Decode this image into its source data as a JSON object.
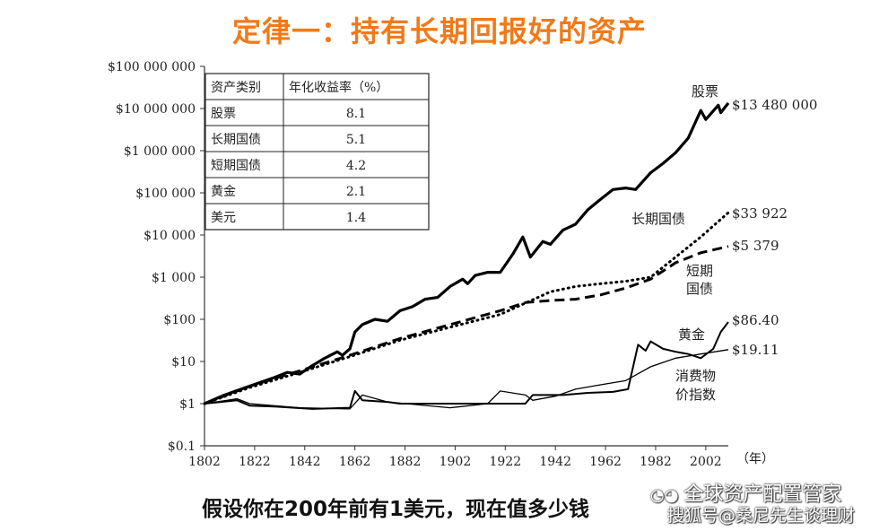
{
  "headline": "定律一：持有长期回报好的资产",
  "bottom_text": "假设你在200年前有1美元，现在值多少钱",
  "watermark": {
    "line1": "全球资产配置管家",
    "line2": "搜狐号@桑尼先生谈理财"
  },
  "chart_data": {
    "type": "line",
    "y_scale": "log",
    "ylim": [
      0.1,
      100000000
    ],
    "xlim": [
      1802,
      2011
    ],
    "y_ticks": [
      {
        "value": 100000000,
        "label": "$100 000 000"
      },
      {
        "value": 10000000,
        "label": "$10 000 000"
      },
      {
        "value": 1000000,
        "label": "$1 000 000"
      },
      {
        "value": 100000,
        "label": "$100 000"
      },
      {
        "value": 10000,
        "label": "$10 000"
      },
      {
        "value": 1000,
        "label": "$1 000"
      },
      {
        "value": 100,
        "label": "$100"
      },
      {
        "value": 10,
        "label": "$10"
      },
      {
        "value": 1,
        "label": "$1"
      },
      {
        "value": 0.1,
        "label": "$0.1"
      }
    ],
    "x_ticks": [
      1802,
      1822,
      1842,
      1862,
      1882,
      1902,
      1922,
      1942,
      1962,
      1982,
      2002
    ],
    "x_unit_label": "（年）",
    "table": {
      "headers": [
        "资产类别",
        "年化收益率（%）"
      ],
      "rows": [
        [
          "股票",
          "8.1"
        ],
        [
          "长期国债",
          "5.1"
        ],
        [
          "短期国债",
          "4.2"
        ],
        [
          "黄金",
          "2.1"
        ],
        [
          "美元",
          "1.4"
        ]
      ]
    },
    "series": [
      {
        "name": "股票",
        "end_label": "$13 480 000",
        "style": "thick",
        "points": [
          [
            1802,
            1
          ],
          [
            1810,
            1.6
          ],
          [
            1820,
            2.6
          ],
          [
            1830,
            4.2
          ],
          [
            1835,
            5.5
          ],
          [
            1840,
            5
          ],
          [
            1845,
            8
          ],
          [
            1850,
            12
          ],
          [
            1855,
            17
          ],
          [
            1857,
            14
          ],
          [
            1860,
            20
          ],
          [
            1862,
            50
          ],
          [
            1865,
            75
          ],
          [
            1870,
            100
          ],
          [
            1875,
            90
          ],
          [
            1880,
            160
          ],
          [
            1885,
            200
          ],
          [
            1890,
            300
          ],
          [
            1895,
            330
          ],
          [
            1900,
            600
          ],
          [
            1905,
            900
          ],
          [
            1907,
            700
          ],
          [
            1910,
            1100
          ],
          [
            1915,
            1300
          ],
          [
            1920,
            1300
          ],
          [
            1925,
            3500
          ],
          [
            1929,
            9000
          ],
          [
            1932,
            3000
          ],
          [
            1937,
            7000
          ],
          [
            1940,
            6000
          ],
          [
            1945,
            13000
          ],
          [
            1950,
            18000
          ],
          [
            1955,
            40000
          ],
          [
            1960,
            70000
          ],
          [
            1965,
            120000
          ],
          [
            1970,
            130000
          ],
          [
            1974,
            120000
          ],
          [
            1980,
            300000
          ],
          [
            1985,
            500000
          ],
          [
            1990,
            900000
          ],
          [
            1995,
            2000000
          ],
          [
            2000,
            9000000
          ],
          [
            2002,
            5500000
          ],
          [
            2007,
            12000000
          ],
          [
            2008,
            8000000
          ],
          [
            2011,
            13480000
          ]
        ]
      },
      {
        "name": "长期国债",
        "end_label": "$33 922",
        "style": "dotted",
        "points": [
          [
            1802,
            1
          ],
          [
            1820,
            2.4
          ],
          [
            1840,
            5.5
          ],
          [
            1860,
            13
          ],
          [
            1880,
            32
          ],
          [
            1900,
            65
          ],
          [
            1920,
            130
          ],
          [
            1940,
            450
          ],
          [
            1950,
            600
          ],
          [
            1960,
            700
          ],
          [
            1970,
            800
          ],
          [
            1980,
            1000
          ],
          [
            1990,
            3000
          ],
          [
            2000,
            9000
          ],
          [
            2011,
            33922
          ]
        ]
      },
      {
        "name": "短期国债",
        "end_label": "$5 379",
        "style": "dashed",
        "points": [
          [
            1802,
            1
          ],
          [
            1820,
            2.6
          ],
          [
            1840,
            6
          ],
          [
            1860,
            14
          ],
          [
            1880,
            35
          ],
          [
            1900,
            75
          ],
          [
            1920,
            160
          ],
          [
            1930,
            250
          ],
          [
            1940,
            280
          ],
          [
            1950,
            300
          ],
          [
            1960,
            380
          ],
          [
            1970,
            550
          ],
          [
            1980,
            900
          ],
          [
            1990,
            2200
          ],
          [
            2000,
            3800
          ],
          [
            2011,
            5379
          ]
        ]
      },
      {
        "name": "黄金",
        "end_label": "$86.40",
        "style": "medium",
        "points": [
          [
            1802,
            1
          ],
          [
            1815,
            1.2
          ],
          [
            1820,
            0.9
          ],
          [
            1830,
            0.85
          ],
          [
            1845,
            0.75
          ],
          [
            1860,
            0.8
          ],
          [
            1862,
            2
          ],
          [
            1865,
            1.2
          ],
          [
            1875,
            1.1
          ],
          [
            1880,
            1
          ],
          [
            1930,
            1
          ],
          [
            1933,
            1.6
          ],
          [
            1945,
            1.6
          ],
          [
            1955,
            1.8
          ],
          [
            1965,
            1.9
          ],
          [
            1971,
            2.2
          ],
          [
            1975,
            25
          ],
          [
            1978,
            18
          ],
          [
            1980,
            30
          ],
          [
            1985,
            20
          ],
          [
            1990,
            17
          ],
          [
            1995,
            15
          ],
          [
            2000,
            12
          ],
          [
            2005,
            20
          ],
          [
            2008,
            50
          ],
          [
            2011,
            86.4
          ]
        ]
      },
      {
        "name": "消费物价指数",
        "end_label": "$19.11",
        "style": "thin",
        "points": [
          [
            1802,
            1
          ],
          [
            1815,
            1.3
          ],
          [
            1820,
            1
          ],
          [
            1840,
            0.8
          ],
          [
            1860,
            0.75
          ],
          [
            1865,
            1.6
          ],
          [
            1875,
            1.1
          ],
          [
            1900,
            0.8
          ],
          [
            1915,
            1
          ],
          [
            1920,
            2
          ],
          [
            1930,
            1.6
          ],
          [
            1933,
            1.2
          ],
          [
            1942,
            1.5
          ],
          [
            1950,
            2.2
          ],
          [
            1960,
            2.8
          ],
          [
            1970,
            3.5
          ],
          [
            1980,
            7.5
          ],
          [
            1990,
            12
          ],
          [
            2000,
            15
          ],
          [
            2011,
            19.11
          ]
        ]
      }
    ],
    "series_labels": [
      {
        "text": "股票"
      },
      {
        "text": "长期国债"
      },
      {
        "text": "短期"
      },
      {
        "text": "国债"
      },
      {
        "text": "黄金"
      },
      {
        "text": "消费物"
      },
      {
        "text": "价指数"
      }
    ]
  }
}
